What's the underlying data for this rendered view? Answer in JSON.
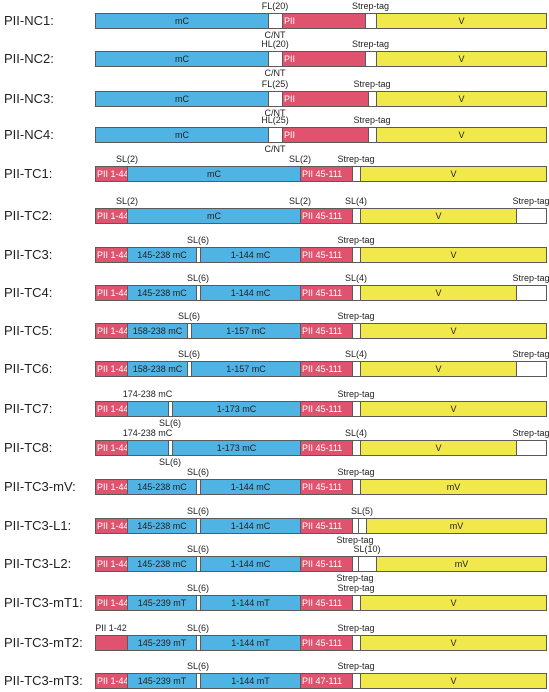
{
  "colors": {
    "mc": "#4fb3e3",
    "pii": "#e0536f",
    "v": "#f1e84c",
    "linker": "#ffffff",
    "border": "#5a5a5a"
  },
  "constructs": [
    {
      "name": "PII-NC1:",
      "segments": [
        {
          "type": "mc",
          "label": "mC"
        },
        {
          "type": "linker",
          "label": ""
        },
        {
          "type": "pii",
          "label": "PII"
        },
        {
          "type": "linker",
          "label": ""
        },
        {
          "type": "v",
          "label": "V"
        }
      ],
      "labels": [
        {
          "text": "FL(20)",
          "pos": "above",
          "seg": 1
        },
        {
          "text": "C/NT",
          "pos": "below",
          "seg": 1
        },
        {
          "text": "Strep-tag",
          "pos": "above",
          "seg": 3
        }
      ]
    },
    {
      "name": "PII-NC2:",
      "segments": [
        {
          "type": "mc",
          "label": "mC"
        },
        {
          "type": "linker",
          "label": ""
        },
        {
          "type": "pii",
          "label": "PII"
        },
        {
          "type": "linker",
          "label": ""
        },
        {
          "type": "v",
          "label": "V"
        }
      ],
      "labels": [
        {
          "text": "HL(20)",
          "pos": "above",
          "seg": 1
        },
        {
          "text": "C/NT",
          "pos": "below",
          "seg": 1
        },
        {
          "text": "Strep-tag",
          "pos": "above",
          "seg": 3
        }
      ]
    },
    {
      "name": "PII-NC3:",
      "segments": [
        {
          "type": "mc",
          "label": "mC"
        },
        {
          "type": "linker",
          "label": ""
        },
        {
          "type": "pii",
          "label": "PII"
        },
        {
          "type": "linker",
          "label": ""
        },
        {
          "type": "v",
          "label": "V"
        }
      ],
      "labels": [
        {
          "text": "FL(25)",
          "pos": "above",
          "seg": 1
        },
        {
          "text": "C/NT",
          "pos": "below",
          "seg": 1
        },
        {
          "text": "Strep-tag",
          "pos": "above",
          "seg": 3
        }
      ]
    },
    {
      "name": "PII-NC4:",
      "segments": [
        {
          "type": "mc",
          "label": "mC"
        },
        {
          "type": "linker",
          "label": ""
        },
        {
          "type": "pii",
          "label": "PII"
        },
        {
          "type": "linker",
          "label": ""
        },
        {
          "type": "v",
          "label": "V"
        }
      ],
      "labels": [
        {
          "text": "HL(25)",
          "pos": "above",
          "seg": 1
        },
        {
          "text": "C/NT",
          "pos": "below",
          "seg": 1
        },
        {
          "text": "Strep-tag",
          "pos": "above",
          "seg": 3
        }
      ]
    },
    {
      "name": "PII-TC1:",
      "segments": [
        {
          "type": "pii",
          "label": "PII 1-44"
        },
        {
          "type": "mc",
          "label": "mC"
        },
        {
          "type": "pii",
          "label": "PII 45-111"
        },
        {
          "type": "linker",
          "label": ""
        },
        {
          "type": "v",
          "label": "V"
        }
      ],
      "labels": [
        {
          "text": "SL(2)",
          "pos": "above",
          "seg": 1,
          "at": "start"
        },
        {
          "text": "SL(2)",
          "pos": "above",
          "seg": 2,
          "at": "start"
        },
        {
          "text": "Strep-tag",
          "pos": "above",
          "seg": 3
        }
      ]
    },
    {
      "name": "PII-TC2:",
      "segments": [
        {
          "type": "pii",
          "label": "PII 1-44"
        },
        {
          "type": "mc",
          "label": "mC"
        },
        {
          "type": "pii",
          "label": "PII 45-111"
        },
        {
          "type": "linker",
          "label": ""
        },
        {
          "type": "v",
          "label": "V"
        },
        {
          "type": "linker",
          "label": ""
        }
      ],
      "labels": [
        {
          "text": "SL(2)",
          "pos": "above",
          "seg": 1,
          "at": "start"
        },
        {
          "text": "SL(2)",
          "pos": "above",
          "seg": 2,
          "at": "start"
        },
        {
          "text": "SL(4)",
          "pos": "above",
          "seg": 3
        },
        {
          "text": "Strep-tag",
          "pos": "above",
          "seg": 5
        }
      ]
    },
    {
      "name": "PII-TC3:",
      "segments": [
        {
          "type": "pii",
          "label": "PII 1-44"
        },
        {
          "type": "mc",
          "label": "145-238 mC"
        },
        {
          "type": "linker",
          "label": ""
        },
        {
          "type": "mc",
          "label": "1-144 mC"
        },
        {
          "type": "pii",
          "label": "PII 45-111"
        },
        {
          "type": "linker",
          "label": ""
        },
        {
          "type": "v",
          "label": "V"
        }
      ],
      "labels": [
        {
          "text": "SL(6)",
          "pos": "above",
          "seg": 2
        },
        {
          "text": "Strep-tag",
          "pos": "above",
          "seg": 5
        }
      ]
    },
    {
      "name": "PII-TC4:",
      "segments": [
        {
          "type": "pii",
          "label": "PII 1-44"
        },
        {
          "type": "mc",
          "label": "145-238 mC"
        },
        {
          "type": "linker",
          "label": ""
        },
        {
          "type": "mc",
          "label": "1-144 mC"
        },
        {
          "type": "pii",
          "label": "PII 45-111"
        },
        {
          "type": "linker",
          "label": ""
        },
        {
          "type": "v",
          "label": "V"
        },
        {
          "type": "linker",
          "label": ""
        }
      ],
      "labels": [
        {
          "text": "SL(6)",
          "pos": "above",
          "seg": 2
        },
        {
          "text": "SL(4)",
          "pos": "above",
          "seg": 5
        },
        {
          "text": "Strep-tag",
          "pos": "above",
          "seg": 7
        }
      ]
    },
    {
      "name": "PII-TC5:",
      "segments": [
        {
          "type": "pii",
          "label": "PII 1-44"
        },
        {
          "type": "mc",
          "label": "158-238 mC"
        },
        {
          "type": "linker",
          "label": ""
        },
        {
          "type": "mc",
          "label": "1-157 mC"
        },
        {
          "type": "pii",
          "label": "PII 45-111"
        },
        {
          "type": "linker",
          "label": ""
        },
        {
          "type": "v",
          "label": "V"
        }
      ],
      "labels": [
        {
          "text": "SL(6)",
          "pos": "above",
          "seg": 2
        },
        {
          "text": "Strep-tag",
          "pos": "above",
          "seg": 5
        }
      ]
    },
    {
      "name": "PII-TC6:",
      "segments": [
        {
          "type": "pii",
          "label": "PII 1-44"
        },
        {
          "type": "mc",
          "label": "158-238 mC"
        },
        {
          "type": "linker",
          "label": ""
        },
        {
          "type": "mc",
          "label": "1-157 mC"
        },
        {
          "type": "pii",
          "label": "PII 45-111"
        },
        {
          "type": "linker",
          "label": ""
        },
        {
          "type": "v",
          "label": "V"
        },
        {
          "type": "linker",
          "label": ""
        }
      ],
      "labels": [
        {
          "text": "SL(6)",
          "pos": "above",
          "seg": 2
        },
        {
          "text": "SL(4)",
          "pos": "above",
          "seg": 5
        },
        {
          "text": "Strep-tag",
          "pos": "above",
          "seg": 7
        }
      ]
    },
    {
      "name": "PII-TC7:",
      "segments": [
        {
          "type": "pii",
          "label": "PII 1-44"
        },
        {
          "type": "mc",
          "label": ""
        },
        {
          "type": "linker",
          "label": ""
        },
        {
          "type": "mc",
          "label": "1-173 mC"
        },
        {
          "type": "pii",
          "label": "PII 45-111"
        },
        {
          "type": "linker",
          "label": ""
        },
        {
          "type": "v",
          "label": "V"
        }
      ],
      "labels": [
        {
          "text": "174-238 mC",
          "pos": "above",
          "seg": 1
        },
        {
          "text": "SL(6)",
          "pos": "below",
          "seg": 2
        },
        {
          "text": "Strep-tag",
          "pos": "above",
          "seg": 5
        }
      ]
    },
    {
      "name": "PII-TC8:",
      "segments": [
        {
          "type": "pii",
          "label": "PII 1-44"
        },
        {
          "type": "mc",
          "label": ""
        },
        {
          "type": "linker",
          "label": ""
        },
        {
          "type": "mc",
          "label": "1-173 mC"
        },
        {
          "type": "pii",
          "label": "PII 45-111"
        },
        {
          "type": "linker",
          "label": ""
        },
        {
          "type": "v",
          "label": "V"
        },
        {
          "type": "linker",
          "label": ""
        }
      ],
      "labels": [
        {
          "text": "174-238 mC",
          "pos": "above",
          "seg": 1
        },
        {
          "text": "SL(6)",
          "pos": "below",
          "seg": 2
        },
        {
          "text": "SL(4)",
          "pos": "above",
          "seg": 5
        },
        {
          "text": "Strep-tag",
          "pos": "above",
          "seg": 7
        }
      ]
    },
    {
      "name": "PII-TC3-mV:",
      "segments": [
        {
          "type": "pii",
          "label": "PII 1-44"
        },
        {
          "type": "mc",
          "label": "145-238 mC"
        },
        {
          "type": "linker",
          "label": ""
        },
        {
          "type": "mc",
          "label": "1-144 mC"
        },
        {
          "type": "pii",
          "label": "PII 45-111"
        },
        {
          "type": "linker",
          "label": ""
        },
        {
          "type": "v",
          "label": "mV"
        }
      ],
      "labels": [
        {
          "text": "SL(6)",
          "pos": "above",
          "seg": 2
        },
        {
          "text": "Strep-tag",
          "pos": "above",
          "seg": 5
        }
      ]
    },
    {
      "name": "PII-TC3-L1:",
      "segments": [
        {
          "type": "pii",
          "label": "PII 1-44"
        },
        {
          "type": "mc",
          "label": "145-238 mC"
        },
        {
          "type": "linker",
          "label": ""
        },
        {
          "type": "mc",
          "label": "1-144 mC"
        },
        {
          "type": "pii",
          "label": "PII 45-111"
        },
        {
          "type": "linker",
          "label": ""
        },
        {
          "type": "linker",
          "label": ""
        },
        {
          "type": "v",
          "label": "mV"
        }
      ],
      "labels": [
        {
          "text": "SL(6)",
          "pos": "above",
          "seg": 2
        },
        {
          "text": "SL(5)",
          "pos": "above",
          "seg": 6
        },
        {
          "text": "Strep-tag",
          "pos": "below",
          "seg": 5
        }
      ]
    },
    {
      "name": "PII-TC3-L2:",
      "segments": [
        {
          "type": "pii",
          "label": "PII 1-44"
        },
        {
          "type": "mc",
          "label": "145-238 mC"
        },
        {
          "type": "linker",
          "label": ""
        },
        {
          "type": "mc",
          "label": "1-144 mC"
        },
        {
          "type": "pii",
          "label": "PII 45-111"
        },
        {
          "type": "linker",
          "label": ""
        },
        {
          "type": "linker",
          "label": ""
        },
        {
          "type": "v",
          "label": "mV"
        }
      ],
      "labels": [
        {
          "text": "SL(6)",
          "pos": "above",
          "seg": 2
        },
        {
          "text": "SL(10)",
          "pos": "above",
          "seg": 6
        },
        {
          "text": "Strep-tag",
          "pos": "below",
          "seg": 5
        }
      ]
    },
    {
      "name": "PII-TC3-mT1:",
      "segments": [
        {
          "type": "pii",
          "label": "PII 1-44"
        },
        {
          "type": "mc",
          "label": "145-239 mT"
        },
        {
          "type": "linker",
          "label": ""
        },
        {
          "type": "mc",
          "label": "1-144 mT"
        },
        {
          "type": "pii",
          "label": "PII 45-111"
        },
        {
          "type": "linker",
          "label": ""
        },
        {
          "type": "v",
          "label": "V"
        }
      ],
      "labels": [
        {
          "text": "SL(6)",
          "pos": "above",
          "seg": 2
        },
        {
          "text": "Strep-tag",
          "pos": "above",
          "seg": 5
        }
      ]
    },
    {
      "name": "PII-TC3-mT2:",
      "segments": [
        {
          "type": "pii",
          "label": ""
        },
        {
          "type": "mc",
          "label": "145-239 mT"
        },
        {
          "type": "linker",
          "label": ""
        },
        {
          "type": "mc",
          "label": "1-144 mT"
        },
        {
          "type": "pii",
          "label": "PII 45-111"
        },
        {
          "type": "linker",
          "label": ""
        },
        {
          "type": "v",
          "label": "V"
        }
      ],
      "labels": [
        {
          "text": "PII 1-42",
          "pos": "above",
          "seg": 0
        },
        {
          "text": "SL(6)",
          "pos": "above",
          "seg": 2
        },
        {
          "text": "Strep-tag",
          "pos": "above",
          "seg": 5
        }
      ]
    },
    {
      "name": "PII-TC3-mT3:",
      "segments": [
        {
          "type": "pii",
          "label": "PII 1-44"
        },
        {
          "type": "mc",
          "label": "145-239 mT"
        },
        {
          "type": "linker",
          "label": ""
        },
        {
          "type": "mc",
          "label": "1-144 mT"
        },
        {
          "type": "pii",
          "label": "PII 47-111"
        },
        {
          "type": "linker",
          "label": ""
        },
        {
          "type": "v",
          "label": "V"
        }
      ],
      "labels": [
        {
          "text": "SL(6)",
          "pos": "above",
          "seg": 2
        },
        {
          "text": "Strep-tag",
          "pos": "above",
          "seg": 5
        }
      ]
    }
  ]
}
